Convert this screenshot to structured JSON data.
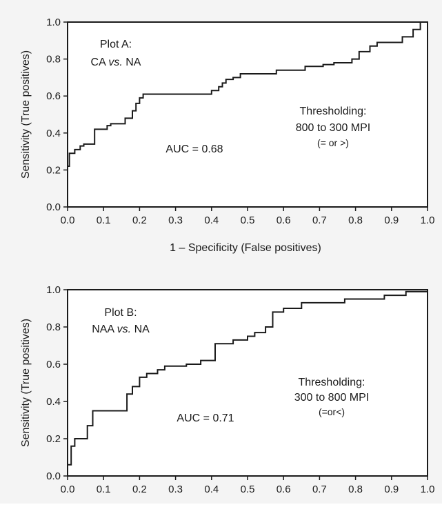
{
  "chart_data": [
    {
      "type": "line",
      "xlim": [
        0,
        1
      ],
      "ylim": [
        0,
        1
      ],
      "xticks": [
        "0.0",
        "0.1",
        "0.2",
        "0.3",
        "0.4",
        "0.5",
        "0.6",
        "0.7",
        "0.8",
        "0.9",
        "1.0"
      ],
      "yticks": [
        "0.0",
        "0.2",
        "0.4",
        "0.6",
        "0.8",
        "1.0"
      ],
      "xlabel": "1 – Specificity (False positives)",
      "ylabel": "Sensitivity (True positives)",
      "grid": false,
      "annotations": {
        "plot_title_line1": "Plot A:",
        "plot_title_line2_pre": "CA ",
        "plot_title_line2_italic": "vs.",
        "plot_title_line2_post": " NA",
        "auc": "AUC = 0.68",
        "threshold_line1": "Thresholding:",
        "threshold_line2": "800 to 300 MPI",
        "threshold_line3": "(= or >)"
      },
      "series": [
        {
          "style": "step",
          "x": [
            0,
            0,
            0.005,
            0.005,
            0.02,
            0.02,
            0.035,
            0.035,
            0.045,
            0.045,
            0.075,
            0.075,
            0.11,
            0.11,
            0.12,
            0.12,
            0.16,
            0.16,
            0.18,
            0.18,
            0.19,
            0.19,
            0.2,
            0.2,
            0.21,
            0.21,
            0.4,
            0.4,
            0.42,
            0.42,
            0.43,
            0.43,
            0.44,
            0.44,
            0.46,
            0.46,
            0.48,
            0.48,
            0.58,
            0.58,
            0.66,
            0.66,
            0.71,
            0.71,
            0.74,
            0.74,
            0.79,
            0.79,
            0.81,
            0.81,
            0.84,
            0.84,
            0.86,
            0.86,
            0.93,
            0.93,
            0.96,
            0.96,
            0.98,
            0.98,
            1.0,
            1.0
          ],
          "y": [
            0,
            0.22,
            0.22,
            0.29,
            0.29,
            0.31,
            0.31,
            0.33,
            0.33,
            0.34,
            0.34,
            0.42,
            0.42,
            0.44,
            0.44,
            0.45,
            0.45,
            0.48,
            0.48,
            0.52,
            0.52,
            0.56,
            0.56,
            0.59,
            0.59,
            0.61,
            0.61,
            0.63,
            0.63,
            0.65,
            0.65,
            0.67,
            0.67,
            0.69,
            0.69,
            0.7,
            0.7,
            0.72,
            0.72,
            0.74,
            0.74,
            0.76,
            0.76,
            0.77,
            0.77,
            0.78,
            0.78,
            0.8,
            0.8,
            0.84,
            0.84,
            0.87,
            0.87,
            0.89,
            0.89,
            0.92,
            0.92,
            0.96,
            0.96,
            1.0,
            1.0,
            1.0
          ]
        }
      ]
    },
    {
      "type": "line",
      "xlim": [
        0,
        1
      ],
      "ylim": [
        0,
        1
      ],
      "xticks": [
        "0.0",
        "0.1",
        "0.2",
        "0.3",
        "0.4",
        "0.5",
        "0.6",
        "0.7",
        "0.8",
        "0.9",
        "1.0"
      ],
      "yticks": [
        "0.0",
        "0.2",
        "0.4",
        "0.6",
        "0.8",
        "1.0"
      ],
      "xlabel": "",
      "ylabel": "Sensitivity (True positives)",
      "grid": false,
      "annotations": {
        "plot_title_line1": "Plot B:",
        "plot_title_line2_pre": "NAA ",
        "plot_title_line2_italic": "vs.",
        "plot_title_line2_post": " NA",
        "auc": "AUC = 0.71",
        "threshold_line1": "Thresholding:",
        "threshold_line2": "300 to 800 MPI",
        "threshold_line3": "(=or<)"
      },
      "series": [
        {
          "style": "step",
          "x": [
            0,
            0,
            0.01,
            0.01,
            0.02,
            0.02,
            0.035,
            0.035,
            0.055,
            0.055,
            0.07,
            0.07,
            0.165,
            0.165,
            0.18,
            0.18,
            0.2,
            0.2,
            0.22,
            0.22,
            0.25,
            0.25,
            0.27,
            0.27,
            0.33,
            0.33,
            0.37,
            0.37,
            0.41,
            0.41,
            0.46,
            0.46,
            0.5,
            0.5,
            0.52,
            0.52,
            0.55,
            0.55,
            0.57,
            0.57,
            0.6,
            0.6,
            0.65,
            0.65,
            0.77,
            0.77,
            0.88,
            0.88,
            0.94,
            0.94,
            1.0,
            1.0
          ],
          "y": [
            0,
            0.06,
            0.06,
            0.16,
            0.16,
            0.2,
            0.2,
            0.2,
            0.2,
            0.27,
            0.27,
            0.35,
            0.35,
            0.44,
            0.44,
            0.48,
            0.48,
            0.53,
            0.53,
            0.55,
            0.55,
            0.57,
            0.57,
            0.59,
            0.59,
            0.6,
            0.6,
            0.62,
            0.62,
            0.71,
            0.71,
            0.73,
            0.73,
            0.75,
            0.75,
            0.77,
            0.77,
            0.8,
            0.8,
            0.88,
            0.88,
            0.9,
            0.9,
            0.93,
            0.93,
            0.95,
            0.95,
            0.97,
            0.97,
            0.99,
            0.99,
            1.0
          ]
        }
      ]
    }
  ]
}
